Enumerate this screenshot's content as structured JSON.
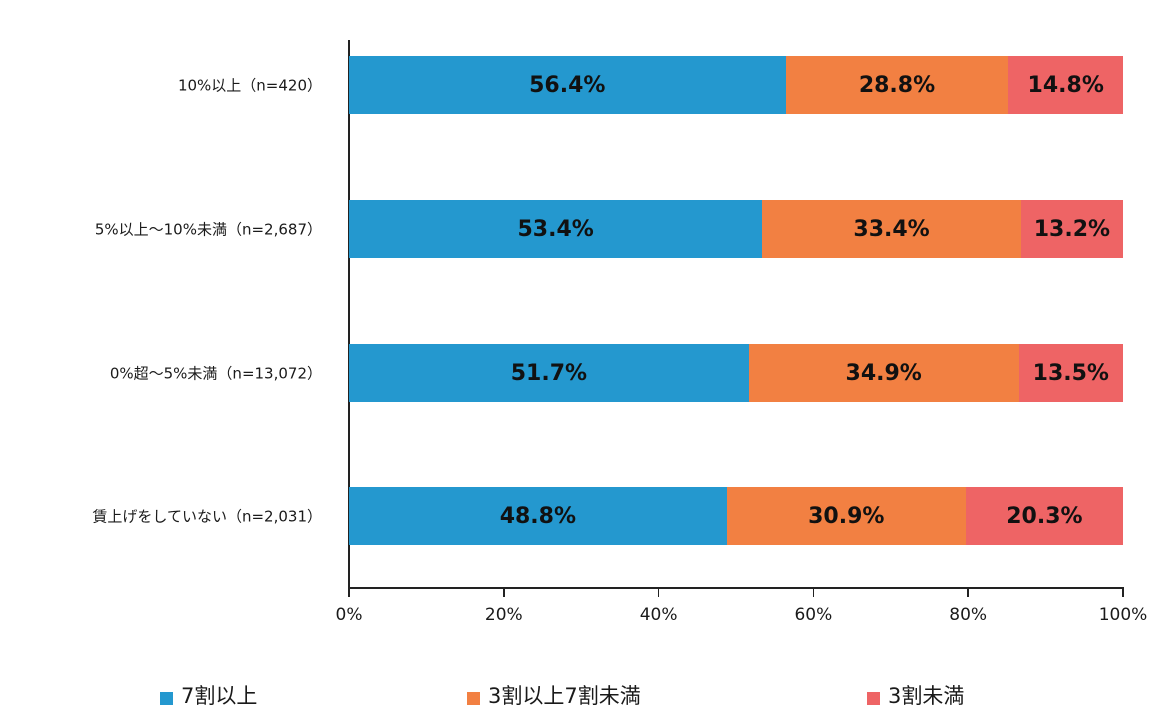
{
  "chart_data": {
    "type": "bar",
    "orientation": "horizontal",
    "stacked": true,
    "categories": [
      "10%以上（n=420）",
      "5%以上～10%未満（n=2,687）",
      "0%超～5%未満（n=13,072）",
      "賃上げをしていない（n=2,031）"
    ],
    "series": [
      {
        "name": "7割以上",
        "color": "#2498CF",
        "values": [
          56.4,
          53.4,
          51.7,
          48.8
        ],
        "labels": [
          "56.4%",
          "53.4%",
          "51.7%",
          "48.8%"
        ]
      },
      {
        "name": "3割以上7割未満",
        "color": "#F28042",
        "values": [
          28.8,
          33.4,
          34.9,
          30.9
        ],
        "labels": [
          "28.8%",
          "33.4%",
          "34.9%",
          "30.9%"
        ]
      },
      {
        "name": "3割未満",
        "color": "#EE6465",
        "values": [
          14.8,
          13.2,
          13.5,
          20.3
        ],
        "labels": [
          "14.8%",
          "13.2%",
          "13.5%",
          "20.3%"
        ]
      }
    ],
    "xlim": [
      0,
      100
    ],
    "xticks": [
      "0%",
      "20%",
      "40%",
      "60%",
      "80%",
      "100%"
    ],
    "title": "",
    "xlabel": "",
    "ylabel": "",
    "grid": false,
    "legend_position": "bottom"
  },
  "axis": {
    "ticks": [
      "0%",
      "20%",
      "40%",
      "60%",
      "80%",
      "100%"
    ]
  },
  "rows": [
    {
      "label": "10%以上（n=420）"
    },
    {
      "label": "5%以上～10%未満（n=2,687）"
    },
    {
      "label": "0%超～5%未満（n=13,072）"
    },
    {
      "label": "賃上げをしていない（n=2,031）"
    }
  ],
  "legend": [
    {
      "label": "7割以上",
      "color": "#2498CF"
    },
    {
      "label": "3割以上7割未満",
      "color": "#F28042"
    },
    {
      "label": "3割未満",
      "color": "#EE6465"
    }
  ]
}
